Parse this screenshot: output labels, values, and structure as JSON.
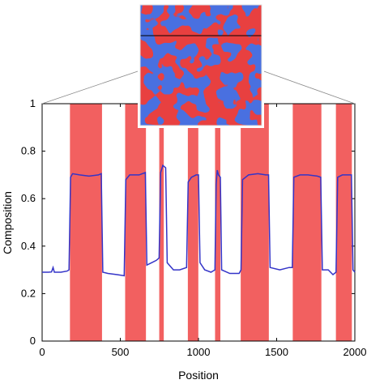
{
  "chart_data": {
    "type": "line",
    "xlabel": "Position",
    "ylabel": "Composition",
    "xlim": [
      0,
      2000
    ],
    "ylim": [
      0,
      1
    ],
    "x_ticks": [
      0,
      500,
      1000,
      1500,
      2000
    ],
    "y_ticks": [
      0,
      0.2,
      0.4,
      0.6,
      0.8,
      1
    ],
    "x_tick_labels": [
      "0",
      "500",
      "1000",
      "1500",
      "2000"
    ],
    "y_tick_labels": [
      "0",
      "0.2",
      "0.4",
      "0.6",
      "0.8",
      "1"
    ],
    "grid": false,
    "series": [
      {
        "color": "#3434c8",
        "points": [
          [
            0,
            0.29
          ],
          [
            40,
            0.29
          ],
          [
            60,
            0.291
          ],
          [
            70,
            0.31
          ],
          [
            78,
            0.29
          ],
          [
            120,
            0.29
          ],
          [
            160,
            0.295
          ],
          [
            172,
            0.3
          ],
          [
            182,
            0.69
          ],
          [
            195,
            0.705
          ],
          [
            240,
            0.7
          ],
          [
            300,
            0.695
          ],
          [
            360,
            0.7
          ],
          [
            378,
            0.705
          ],
          [
            388,
            0.29
          ],
          [
            420,
            0.285
          ],
          [
            480,
            0.28
          ],
          [
            525,
            0.275
          ],
          [
            535,
            0.68
          ],
          [
            560,
            0.7
          ],
          [
            620,
            0.7
          ],
          [
            660,
            0.71
          ],
          [
            670,
            0.32
          ],
          [
            700,
            0.33
          ],
          [
            730,
            0.34
          ],
          [
            748,
            0.35
          ],
          [
            758,
            0.71
          ],
          [
            772,
            0.74
          ],
          [
            790,
            0.73
          ],
          [
            800,
            0.33
          ],
          [
            840,
            0.3
          ],
          [
            880,
            0.3
          ],
          [
            924,
            0.31
          ],
          [
            934,
            0.67
          ],
          [
            955,
            0.69
          ],
          [
            985,
            0.7
          ],
          [
            1000,
            0.7
          ],
          [
            1010,
            0.33
          ],
          [
            1040,
            0.3
          ],
          [
            1080,
            0.29
          ],
          [
            1105,
            0.3
          ],
          [
            1113,
            0.66
          ],
          [
            1120,
            0.72
          ],
          [
            1128,
            0.7
          ],
          [
            1140,
            0.69
          ],
          [
            1148,
            0.3
          ],
          [
            1200,
            0.285
          ],
          [
            1260,
            0.285
          ],
          [
            1272,
            0.3
          ],
          [
            1282,
            0.68
          ],
          [
            1320,
            0.7
          ],
          [
            1380,
            0.705
          ],
          [
            1430,
            0.7
          ],
          [
            1448,
            0.7
          ],
          [
            1458,
            0.31
          ],
          [
            1520,
            0.3
          ],
          [
            1580,
            0.31
          ],
          [
            1600,
            0.31
          ],
          [
            1610,
            0.69
          ],
          [
            1650,
            0.7
          ],
          [
            1700,
            0.7
          ],
          [
            1760,
            0.695
          ],
          [
            1782,
            0.69
          ],
          [
            1792,
            0.3
          ],
          [
            1830,
            0.3
          ],
          [
            1860,
            0.28
          ],
          [
            1880,
            0.29
          ],
          [
            1890,
            0.69
          ],
          [
            1920,
            0.7
          ],
          [
            1960,
            0.7
          ],
          [
            1978,
            0.7
          ],
          [
            1988,
            0.3
          ],
          [
            2000,
            0.29
          ]
        ]
      }
    ],
    "shaded_regions": {
      "color": "#f26060",
      "ranges": [
        [
          178,
          383
        ],
        [
          531,
          664
        ],
        [
          749,
          778
        ],
        [
          932,
          999
        ],
        [
          1106,
          1140
        ],
        [
          1270,
          1450
        ],
        [
          1603,
          1786
        ],
        [
          1879,
          1981
        ]
      ]
    },
    "inset": {
      "description_colors": [
        "#e84040",
        "#4a6fe0"
      ],
      "line_color": "#000000"
    }
  }
}
